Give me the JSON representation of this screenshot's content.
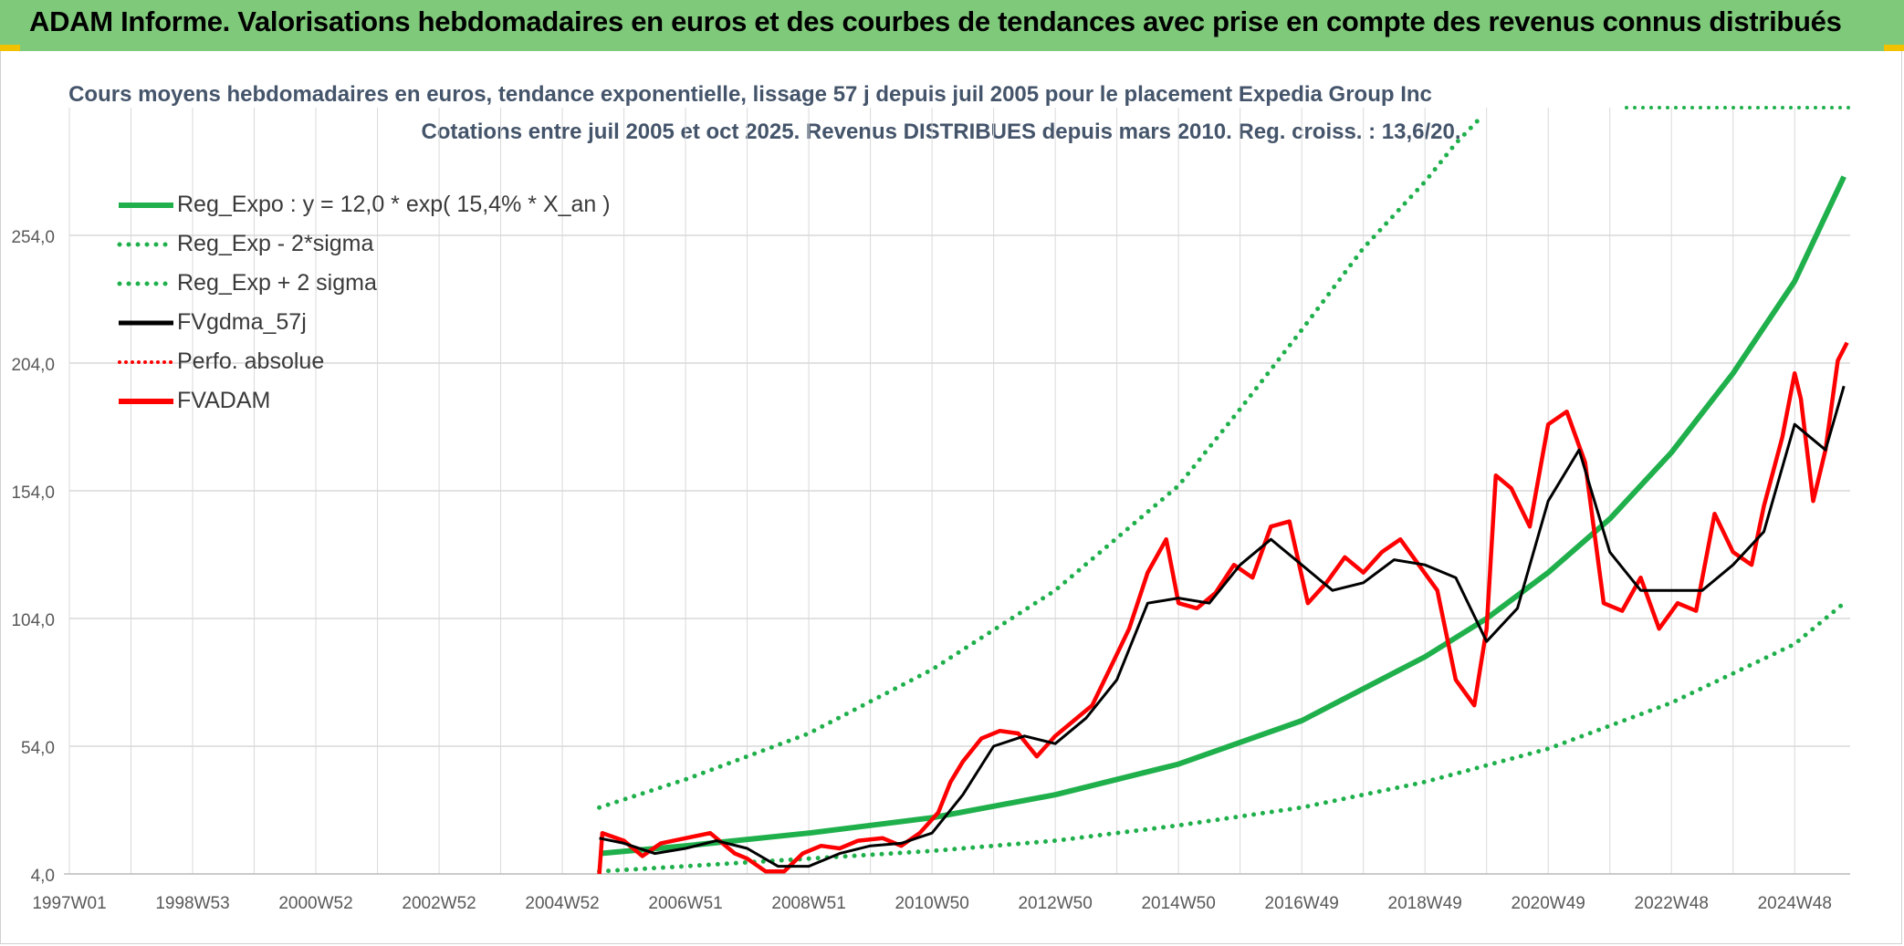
{
  "header": {
    "title": "ADAM Informe. Valorisations hebdomadaires en euros et des courbes de tendances avec prise en compte des revenus connus distribués"
  },
  "chart_data": {
    "type": "line",
    "title": "Cours moyens hebdomadaires en euros, tendance exponentielle, lissage 57 j depuis juil 2005 pour le placement Expedia Group Inc",
    "subtitle": "Cotations entre juil 2005 et oct 2025. Revenus DISTRIBUES depuis mars 2010. Reg. croiss. : 13,6/20.",
    "x_axis": {
      "range": [
        1997.0,
        2025.9
      ],
      "tick_labels": [
        "1997W01",
        "1998W53",
        "2000W52",
        "2002W52",
        "2004W52",
        "2006W51",
        "2008W51",
        "2010W50",
        "2012W50",
        "2014W50",
        "2016W49",
        "2018W49",
        "2020W49",
        "2022W48",
        "2024W48"
      ],
      "tick_years": [
        1997.0,
        1999.0,
        2001.0,
        2003.0,
        2005.0,
        2007.0,
        2009.0,
        2011.0,
        2013.0,
        2015.0,
        2017.0,
        2019.0,
        2021.0,
        2023.0,
        2025.0
      ]
    },
    "y_axis": {
      "range": [
        4,
        304
      ],
      "tick_labels": [
        "4,0",
        "54,0",
        "104,0",
        "154,0",
        "204,0",
        "254,0"
      ],
      "tick_values": [
        4,
        54,
        104,
        154,
        204,
        254
      ]
    },
    "grid": true,
    "legend": "top-left",
    "series": [
      {
        "name": "Reg_Expo : y = 12,0 * exp( 15,4% *  X_an )",
        "style": "solid",
        "color": "#1fb04c",
        "x": [
          2005.6,
          2007,
          2009,
          2011,
          2013,
          2015,
          2017,
          2019,
          2020,
          2021,
          2022,
          2023,
          2024,
          2025,
          2025.8
        ],
        "y": [
          12,
          15,
          20,
          26,
          35,
          47,
          64,
          89,
          104,
          122,
          143,
          169,
          200,
          236,
          277
        ]
      },
      {
        "name": "Reg_Exp - 2*sigma",
        "style": "dotted",
        "color": "#1fb04c",
        "x": [
          2005.6,
          2007,
          2009,
          2011,
          2013,
          2015,
          2017,
          2019,
          2021,
          2023,
          2025,
          2025.8
        ],
        "y": [
          5,
          7,
          10,
          13,
          17,
          23,
          30,
          40,
          53,
          71,
          94,
          110
        ]
      },
      {
        "name": "Reg_Exp + 2 sigma",
        "style": "dotted",
        "color": "#1fb04c",
        "x": [
          2005.6,
          2007,
          2009,
          2011,
          2013,
          2015,
          2016,
          2017,
          2018,
          2019,
          2019.5,
          2019.9
        ],
        "y": [
          30,
          41,
          59,
          84,
          115,
          156,
          186,
          217,
          249,
          275,
          290,
          300
        ]
      },
      {
        "name": "FVgdma_57j",
        "style": "solid",
        "color": "#000000",
        "x": [
          2005.6,
          2006,
          2006.5,
          2007,
          2007.5,
          2008,
          2008.5,
          2009,
          2009.5,
          2010,
          2010.5,
          2011,
          2011.5,
          2012,
          2012.5,
          2013,
          2013.5,
          2014,
          2014.5,
          2015,
          2015.5,
          2016,
          2016.5,
          2017,
          2017.5,
          2018,
          2018.5,
          2019,
          2019.5,
          2020,
          2020.5,
          2021,
          2021.5,
          2022,
          2022.5,
          2023,
          2023.5,
          2024,
          2024.5,
          2025,
          2025.5,
          2025.8
        ],
        "y": [
          18,
          16,
          12,
          14,
          17,
          14,
          7,
          7,
          12,
          15,
          16,
          20,
          35,
          54,
          58,
          55,
          65,
          80,
          110,
          112,
          110,
          125,
          135,
          125,
          115,
          118,
          127,
          125,
          120,
          95,
          108,
          150,
          170,
          130,
          115,
          115,
          115,
          125,
          138,
          180,
          170,
          195
        ]
      },
      {
        "name": "Perfo. absolue",
        "style": "dotted",
        "color": "#ff0000",
        "x": [],
        "y": []
      },
      {
        "name": "FVADAM",
        "style": "solid",
        "color": "#ff0000",
        "x": [
          2005.6,
          2005.65,
          2006,
          2006.3,
          2006.6,
          2007,
          2007.4,
          2007.8,
          2008,
          2008.3,
          2008.6,
          2008.9,
          2009.2,
          2009.5,
          2009.8,
          2010.2,
          2010.5,
          2010.8,
          2011.1,
          2011.3,
          2011.5,
          2011.8,
          2012.1,
          2012.4,
          2012.7,
          2013,
          2013.3,
          2013.6,
          2013.9,
          2014.2,
          2014.5,
          2014.8,
          2015,
          2015.3,
          2015.6,
          2015.9,
          2016.2,
          2016.5,
          2016.8,
          2017.1,
          2017.4,
          2017.7,
          2018,
          2018.3,
          2018.6,
          2018.9,
          2019.2,
          2019.5,
          2019.8,
          2020,
          2020.15,
          2020.4,
          2020.7,
          2021,
          2021.3,
          2021.6,
          2021.9,
          2022.2,
          2022.5,
          2022.8,
          2023.1,
          2023.4,
          2023.7,
          2024,
          2024.3,
          2024.5,
          2024.8,
          2025,
          2025.1,
          2025.3,
          2025.5,
          2025.7,
          2025.85
        ],
        "y": [
          4,
          20,
          17,
          11,
          16,
          18,
          20,
          12,
          10,
          5,
          5,
          12,
          15,
          14,
          17,
          18,
          15,
          20,
          28,
          40,
          48,
          57,
          60,
          59,
          50,
          58,
          64,
          70,
          85,
          100,
          122,
          135,
          110,
          108,
          114,
          125,
          120,
          140,
          142,
          110,
          118,
          128,
          122,
          130,
          135,
          125,
          115,
          80,
          70,
          100,
          160,
          155,
          140,
          180,
          185,
          165,
          110,
          107,
          120,
          100,
          110,
          107,
          145,
          130,
          125,
          148,
          175,
          200,
          190,
          150,
          170,
          205,
          212
        ]
      }
    ]
  }
}
